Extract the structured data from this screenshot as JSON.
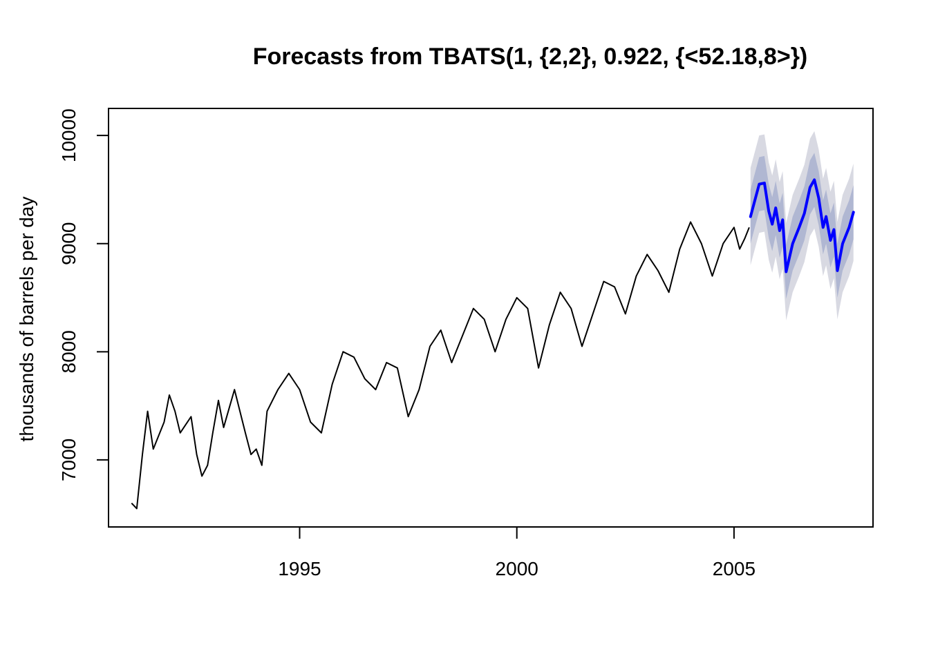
{
  "chart_data": {
    "type": "line",
    "title": "Forecasts from TBATS(1, {2,2}, 0.922, {<52.18,8>})",
    "xlabel": "",
    "ylabel": "thousands of barrels per day",
    "xlim": [
      1990.6,
      2008.2
    ],
    "ylim": [
      6380,
      10250
    ],
    "x_ticks": [
      1995,
      2000,
      2005
    ],
    "y_ticks": [
      7000,
      8000,
      9000,
      10000
    ],
    "grid": false,
    "legend": "none",
    "colors": {
      "history": "#000000",
      "forecast": "#0000ff",
      "band80": "#b0b7d2",
      "band95": "#d8d9e2"
    },
    "series": [
      {
        "role": "history",
        "points": [
          [
            1991.13,
            6600
          ],
          [
            1991.25,
            6550
          ],
          [
            1991.38,
            7050
          ],
          [
            1991.5,
            7450
          ],
          [
            1991.63,
            7100
          ],
          [
            1991.88,
            7350
          ],
          [
            1992.0,
            7600
          ],
          [
            1992.13,
            7450
          ],
          [
            1992.25,
            7250
          ],
          [
            1992.5,
            7400
          ],
          [
            1992.63,
            7050
          ],
          [
            1992.75,
            6850
          ],
          [
            1992.88,
            6950
          ],
          [
            1993.0,
            7250
          ],
          [
            1993.13,
            7550
          ],
          [
            1993.25,
            7300
          ],
          [
            1993.5,
            7650
          ],
          [
            1993.75,
            7250
          ],
          [
            1993.88,
            7050
          ],
          [
            1994.0,
            7100
          ],
          [
            1994.13,
            6950
          ],
          [
            1994.25,
            7450
          ],
          [
            1994.5,
            7650
          ],
          [
            1994.75,
            7800
          ],
          [
            1995.0,
            7650
          ],
          [
            1995.25,
            7350
          ],
          [
            1995.5,
            7250
          ],
          [
            1995.75,
            7700
          ],
          [
            1996.0,
            8000
          ],
          [
            1996.25,
            7950
          ],
          [
            1996.5,
            7750
          ],
          [
            1996.75,
            7650
          ],
          [
            1997.0,
            7900
          ],
          [
            1997.25,
            7850
          ],
          [
            1997.5,
            7400
          ],
          [
            1997.75,
            7650
          ],
          [
            1998.0,
            8050
          ],
          [
            1998.25,
            8200
          ],
          [
            1998.5,
            7900
          ],
          [
            1998.75,
            8150
          ],
          [
            1999.0,
            8400
          ],
          [
            1999.25,
            8300
          ],
          [
            1999.5,
            8000
          ],
          [
            1999.75,
            8300
          ],
          [
            2000.0,
            8500
          ],
          [
            2000.25,
            8400
          ],
          [
            2000.5,
            7850
          ],
          [
            2000.75,
            8250
          ],
          [
            2001.0,
            8550
          ],
          [
            2001.25,
            8400
          ],
          [
            2001.5,
            8050
          ],
          [
            2001.75,
            8350
          ],
          [
            2002.0,
            8650
          ],
          [
            2002.25,
            8600
          ],
          [
            2002.5,
            8350
          ],
          [
            2002.75,
            8700
          ],
          [
            2003.0,
            8900
          ],
          [
            2003.25,
            8750
          ],
          [
            2003.5,
            8550
          ],
          [
            2003.75,
            8950
          ],
          [
            2004.0,
            9200
          ],
          [
            2004.25,
            9000
          ],
          [
            2004.5,
            8700
          ],
          [
            2004.75,
            9000
          ],
          [
            2005.0,
            9150
          ],
          [
            2005.13,
            8950
          ],
          [
            2005.25,
            9050
          ],
          [
            2005.35,
            9150
          ]
        ]
      },
      {
        "role": "forecast",
        "points": [
          [
            2005.38,
            9250
          ],
          [
            2005.5,
            9430
          ],
          [
            2005.58,
            9550
          ],
          [
            2005.7,
            9560
          ],
          [
            2005.8,
            9300
          ],
          [
            2005.88,
            9180
          ],
          [
            2005.96,
            9330
          ],
          [
            2006.05,
            9120
          ],
          [
            2006.12,
            9220
          ],
          [
            2006.2,
            8740
          ],
          [
            2006.35,
            9000
          ],
          [
            2006.5,
            9150
          ],
          [
            2006.62,
            9280
          ],
          [
            2006.75,
            9520
          ],
          [
            2006.85,
            9590
          ],
          [
            2006.95,
            9420
          ],
          [
            2007.05,
            9150
          ],
          [
            2007.12,
            9250
          ],
          [
            2007.22,
            9030
          ],
          [
            2007.3,
            9130
          ],
          [
            2007.38,
            8750
          ],
          [
            2007.5,
            9000
          ],
          [
            2007.65,
            9150
          ],
          [
            2007.75,
            9290
          ]
        ],
        "lower80_delta": 250,
        "upper80_delta": 250,
        "lower95_delta": 450,
        "upper95_delta": 450
      }
    ]
  }
}
